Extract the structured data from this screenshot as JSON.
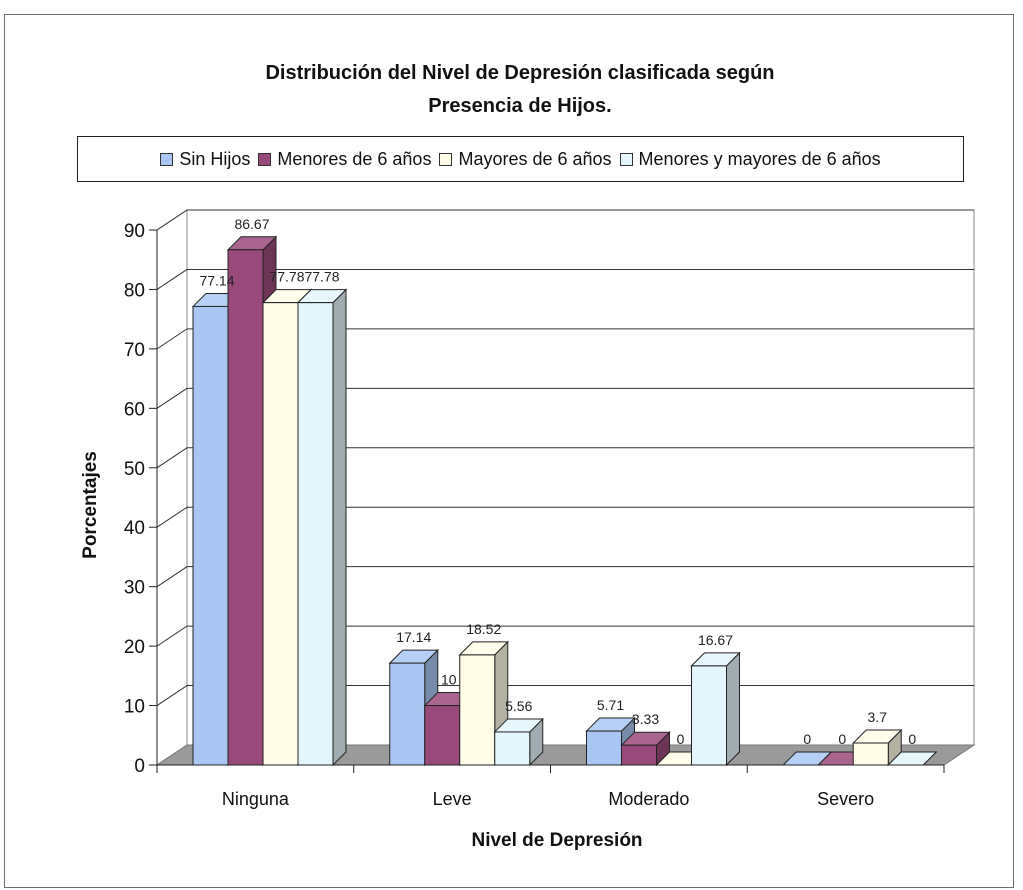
{
  "chart_data": {
    "type": "bar",
    "title_line1": "Distribución del Nivel de Depresión clasificada según",
    "title_line2": "Presencia de Hijos.",
    "xlabel": "Nivel de Depresión",
    "ylabel": "Porcentajes",
    "categories": [
      "Ninguna",
      "Leve",
      "Moderado",
      "Severo"
    ],
    "ylim": [
      0,
      90
    ],
    "yticks": [
      "0",
      "10",
      "20",
      "30",
      "40",
      "50",
      "60",
      "70",
      "80",
      "90"
    ],
    "grid": true,
    "legend_position": "top",
    "series": [
      {
        "name": "Sin Hijos",
        "color": "#a9c6f2",
        "values": [
          77.14,
          17.14,
          5.71,
          0
        ],
        "labels": [
          "77.14",
          "17.14",
          "5.71",
          "0"
        ]
      },
      {
        "name": "Menores de 6 años",
        "color": "#9a4a7a",
        "values": [
          86.67,
          10,
          3.33,
          0
        ],
        "labels": [
          "86.67",
          "10",
          "3.33",
          "0"
        ]
      },
      {
        "name": "Mayores de 6 años",
        "color": "#fffde8",
        "values": [
          77.78,
          18.52,
          0,
          3.7
        ],
        "labels": [
          "77.78",
          "18.52",
          "0",
          "3.7"
        ]
      },
      {
        "name": "Menores y mayores de 6 años",
        "color": "#e4f6fc",
        "values": [
          77.78,
          5.56,
          16.67,
          0
        ],
        "labels": [
          "77.78",
          "5.56",
          "16.67",
          "0"
        ]
      }
    ]
  }
}
